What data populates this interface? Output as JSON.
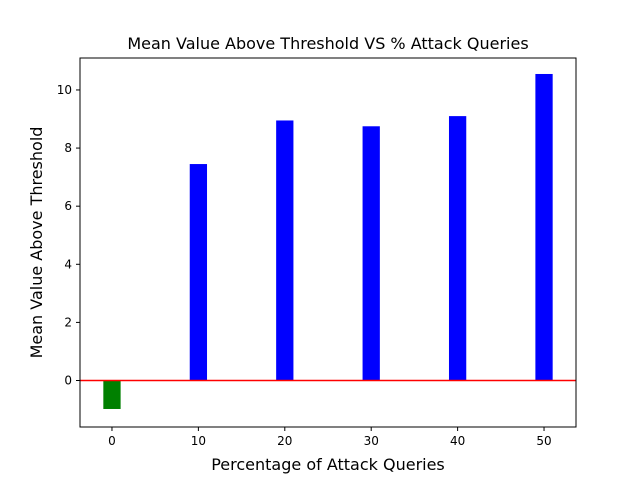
{
  "chart_data": {
    "type": "bar",
    "title": "Mean Value Above Threshold VS % Attack Queries",
    "xlabel": "Percentage of Attack Queries",
    "ylabel": "Mean Value Above Threshold",
    "xlim": [
      -3.7,
      53.7
    ],
    "ylim": [
      -1.6,
      11.1
    ],
    "xticks": [
      0,
      10,
      20,
      30,
      40,
      50
    ],
    "yticks": [
      0,
      2,
      4,
      6,
      8,
      10
    ],
    "bar_width": 2,
    "grid": false,
    "points": [
      {
        "x": 0,
        "value": -0.98,
        "color": "#008000"
      },
      {
        "x": 10,
        "value": 7.45,
        "color": "#0000ff"
      },
      {
        "x": 20,
        "value": 8.95,
        "color": "#0000ff"
      },
      {
        "x": 30,
        "value": 8.75,
        "color": "#0000ff"
      },
      {
        "x": 40,
        "value": 9.1,
        "color": "#0000ff"
      },
      {
        "x": 50,
        "value": 10.55,
        "color": "#0000ff"
      }
    ],
    "reference_line": {
      "y": 0,
      "color": "#ff0000"
    }
  }
}
